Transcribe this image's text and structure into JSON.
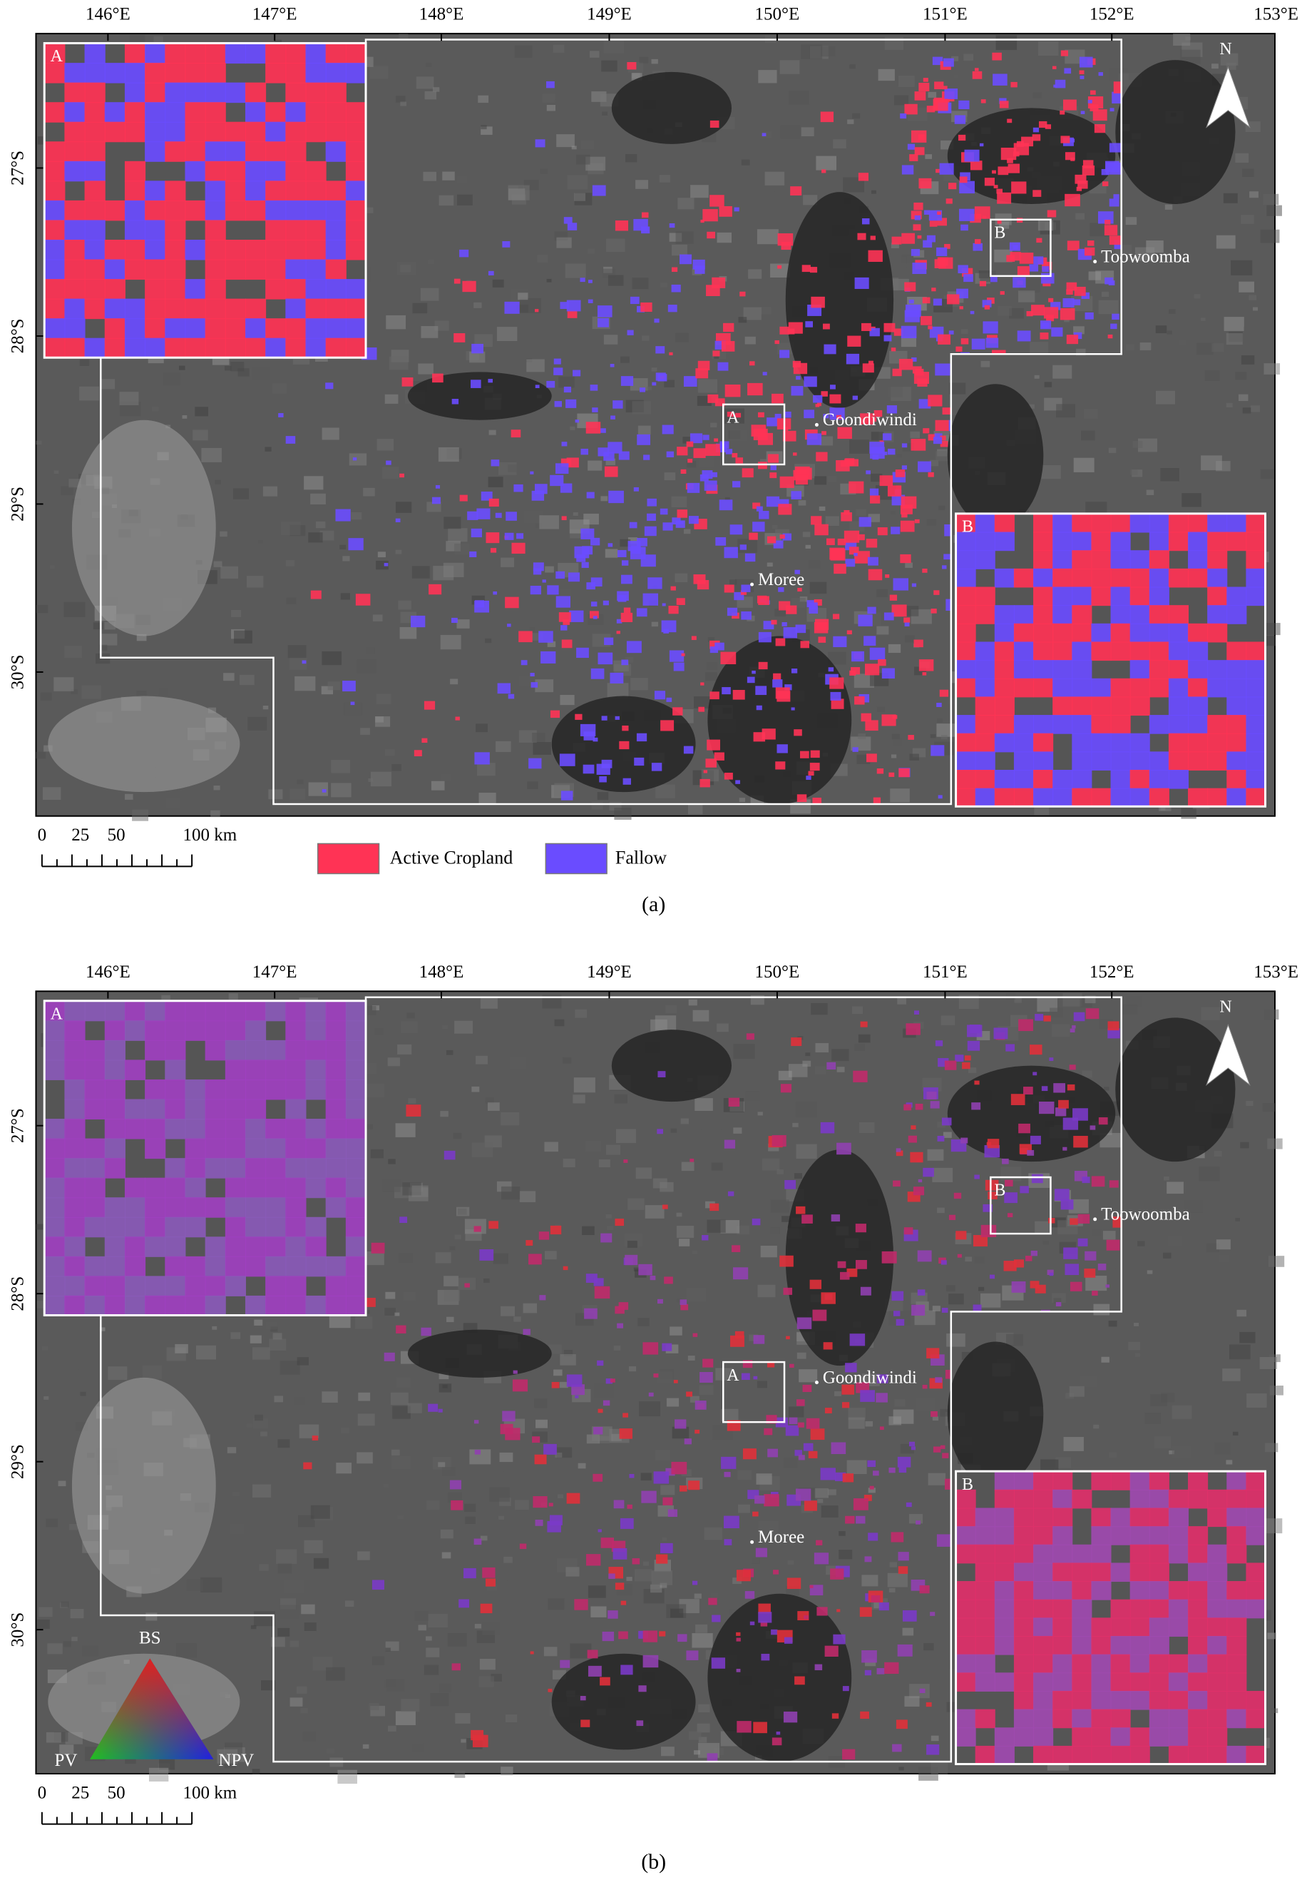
{
  "panels": [
    {
      "caption": "(a)",
      "longitude_labels": [
        "146°E",
        "147°E",
        "148°E",
        "149°E",
        "150°E",
        "151°E",
        "152°E",
        "153°E"
      ],
      "latitude_labels": [
        "27°S",
        "28°S",
        "29°S",
        "30°S"
      ],
      "insets": [
        {
          "label": "A",
          "palette": [
            "#ff3355",
            "#6a4cff"
          ]
        },
        {
          "label": "B",
          "palette": [
            "#6a4cff",
            "#ff3355"
          ]
        }
      ],
      "boxes": [
        "A",
        "B"
      ],
      "places": [
        "Toowoomba",
        "Goondiwindi",
        "Moree"
      ],
      "north": "N",
      "scale_bar": [
        "0",
        "25",
        "50",
        "100 km"
      ],
      "legend": [
        {
          "label": "Active Cropland",
          "color": "#ff3355"
        },
        {
          "label": "Fallow",
          "color": "#6a4cff"
        }
      ]
    },
    {
      "caption": "(b)",
      "longitude_labels": [
        "146°E",
        "147°E",
        "148°E",
        "149°E",
        "150°E",
        "151°E",
        "152°E",
        "153°E"
      ],
      "latitude_labels": [
        "27°S",
        "28°S",
        "29°S",
        "30°S"
      ],
      "insets": [
        {
          "label": "A",
          "palette": [
            "#a040c0",
            "#8a5ab8"
          ]
        },
        {
          "label": "B",
          "palette": [
            "#e0306a",
            "#a04ab0"
          ]
        }
      ],
      "boxes": [
        "A",
        "B"
      ],
      "places": [
        "Toowoomba",
        "Goondiwindi",
        "Moree"
      ],
      "north": "N",
      "scale_bar": [
        "0",
        "25",
        "50",
        "100 km"
      ],
      "ternary": {
        "labels": [
          "BS",
          "PV",
          "NPV"
        ],
        "colors": [
          "#e02020",
          "#20c020",
          "#2020e0"
        ]
      }
    }
  ]
}
